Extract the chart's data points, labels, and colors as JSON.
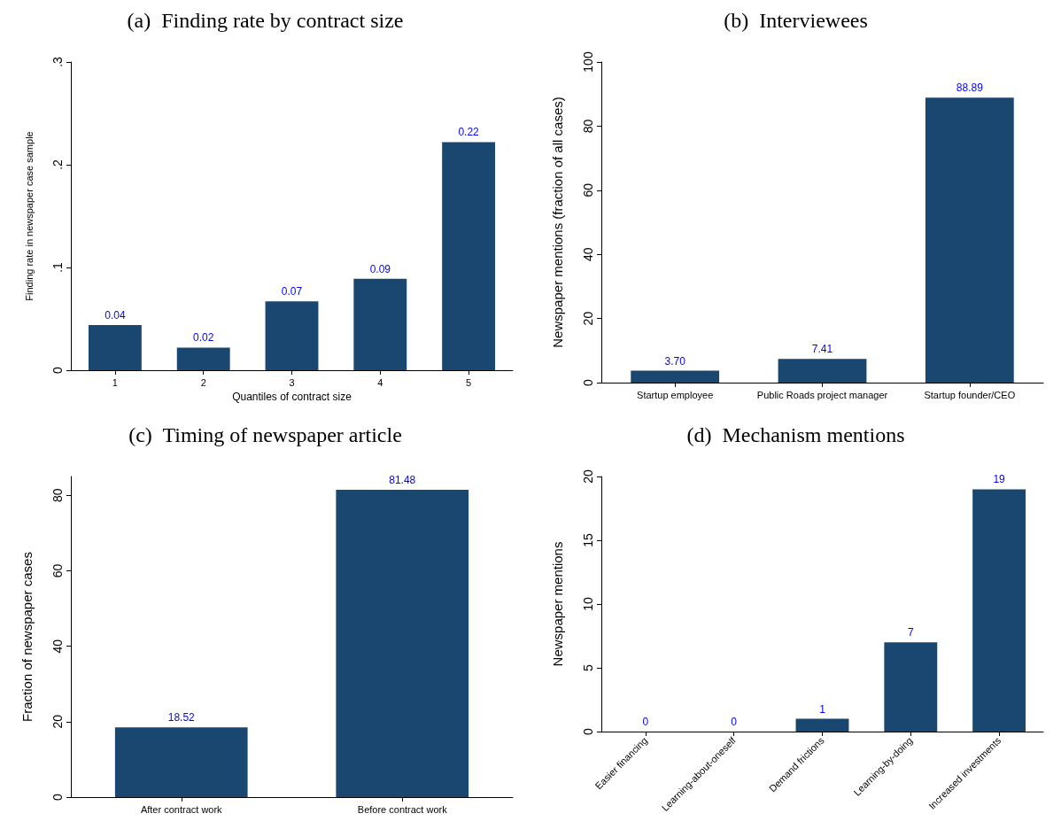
{
  "chart_data": [
    {
      "type": "bar",
      "title": "(a)  Finding rate by contract size",
      "xlabel": "Quantiles of contract size",
      "ylabel": "Finding rate in newspaper case sample",
      "categories": [
        "1",
        "2",
        "3",
        "4",
        "5"
      ],
      "values": [
        0.044,
        0.022,
        0.067,
        0.089,
        0.222
      ],
      "value_labels": [
        "0.04",
        "0.02",
        "0.07",
        "0.09",
        "0.22"
      ],
      "color": "#1a476f",
      "ylim": [
        0,
        0.3
      ],
      "yticks": [
        0,
        {
          "value": 0.1,
          "label": ".1"
        },
        {
          "value": 0.2,
          "label": ".2"
        },
        {
          "value": 0.3,
          "label": ".3"
        }
      ],
      "grid": false
    },
    {
      "type": "bar",
      "title": "(b)  Interviewees",
      "ylabel": "Newspaper mentions (fraction of all cases)",
      "categories": [
        "Startup employee",
        "Public Roads project manager",
        "Startup founder/CEO"
      ],
      "values": [
        3.7,
        7.41,
        88.89
      ],
      "value_labels": [
        "3.70",
        "7.41",
        "88.89"
      ],
      "color": "#1a476f",
      "ylim": [
        0,
        100
      ],
      "yticks": [
        0,
        20,
        40,
        60,
        80,
        100
      ],
      "grid": false
    },
    {
      "type": "bar",
      "title": "(c)  Timing of newspaper article",
      "ylabel": "Fraction of newspaper cases",
      "categories": [
        "After contract work",
        "Before contract work"
      ],
      "values": [
        18.52,
        81.48
      ],
      "value_labels": [
        "18.52",
        "81.48"
      ],
      "color": "#1a476f",
      "ylim": [
        0,
        85
      ],
      "yticks": [
        0,
        20,
        40,
        60,
        80
      ],
      "grid": false
    },
    {
      "type": "bar",
      "title": "(d)  Mechanism mentions",
      "ylabel": "Newspaper mentions",
      "categories": [
        "Easier financing",
        "Learning-about-oneself",
        "Demand frictions",
        "Learning-by-doing",
        "Increased investments"
      ],
      "values": [
        0,
        0,
        1,
        7,
        19
      ],
      "data_labels": true,
      "color": "#1a476f",
      "ylim": [
        0,
        20
      ],
      "yticks": [
        0,
        5,
        10,
        15,
        20
      ],
      "grid": false
    }
  ]
}
